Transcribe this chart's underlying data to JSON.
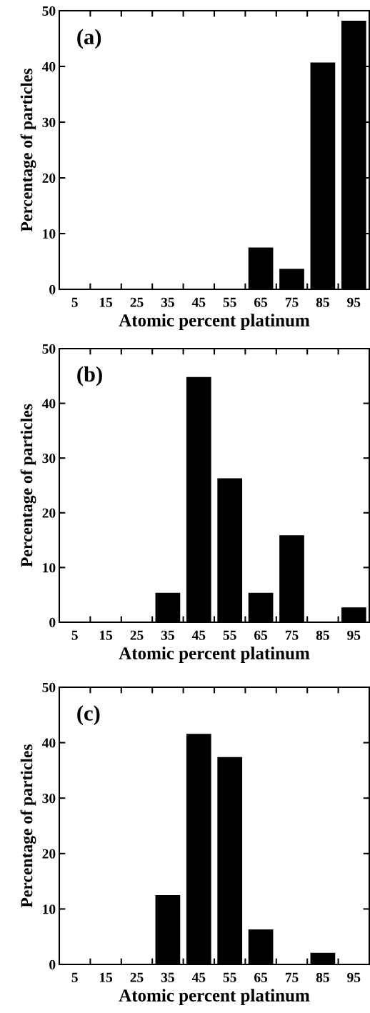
{
  "chart_data": [
    {
      "type": "histogram",
      "annotations": [
        "(a)"
      ],
      "xlabel": "Atomic percent platinum",
      "ylabel": "Percentage of particles",
      "color": "#000000",
      "bins": [
        0,
        10,
        20,
        30,
        40,
        50,
        60,
        70,
        80,
        90,
        100
      ],
      "values": [
        0,
        0,
        0,
        0,
        0,
        0,
        7.5,
        3.7,
        40.7,
        48.2
      ],
      "xlim": [
        0,
        100
      ],
      "ylim": [
        0,
        50
      ],
      "yticks": [
        0,
        10,
        20,
        30,
        40,
        50
      ],
      "xticks": [
        5,
        15,
        25,
        35,
        45,
        55,
        65,
        75,
        85,
        95,
        {
          "value": 10,
          "label": null
        },
        {
          "value": 20,
          "label": null
        },
        {
          "value": 30,
          "label": null
        },
        {
          "value": 40,
          "label": null
        },
        {
          "value": 50,
          "label": null
        },
        {
          "value": 60,
          "label": null
        },
        {
          "value": 70,
          "label": null
        },
        {
          "value": 80,
          "label": null
        },
        {
          "value": 90,
          "label": null
        }
      ]
    },
    {
      "type": "histogram",
      "annotations": [
        "(b)"
      ],
      "xlabel": "Atomic percent platinum",
      "ylabel": "Percentage of particles",
      "color": "#000000",
      "bins": [
        0,
        10,
        20,
        30,
        40,
        50,
        60,
        70,
        80,
        90,
        100
      ],
      "values": [
        0,
        0,
        0,
        5.4,
        44.8,
        26.3,
        5.4,
        15.9,
        0,
        2.7
      ],
      "xlim": [
        0,
        100
      ],
      "ylim": [
        0,
        50
      ],
      "yticks": [
        0,
        10,
        20,
        30,
        40,
        50
      ],
      "xticks": [
        5,
        15,
        25,
        35,
        45,
        55,
        65,
        75,
        85,
        95,
        {
          "value": 10,
          "label": null
        },
        {
          "value": 20,
          "label": null
        },
        {
          "value": 30,
          "label": null
        },
        {
          "value": 40,
          "label": null
        },
        {
          "value": 50,
          "label": null
        },
        {
          "value": 60,
          "label": null
        },
        {
          "value": 70,
          "label": null
        },
        {
          "value": 80,
          "label": null
        },
        {
          "value": 90,
          "label": null
        }
      ]
    },
    {
      "type": "histogram",
      "annotations": [
        "(c)"
      ],
      "xlabel": "Atomic percent platinum",
      "ylabel": "Percentage of particles",
      "color": "#000000",
      "bins": [
        0,
        10,
        20,
        30,
        40,
        50,
        60,
        70,
        80,
        90,
        100
      ],
      "values": [
        0,
        0,
        0,
        12.5,
        41.6,
        37.4,
        6.3,
        0,
        2.1,
        0
      ],
      "xlim": [
        0,
        100
      ],
      "ylim": [
        0,
        50
      ],
      "yticks": [
        0,
        10,
        20,
        30,
        40,
        50
      ],
      "xticks": [
        5,
        15,
        25,
        35,
        45,
        55,
        65,
        75,
        85,
        95,
        {
          "value": 10,
          "label": null
        },
        {
          "value": 20,
          "label": null
        },
        {
          "value": 30,
          "label": null
        },
        {
          "value": 40,
          "label": null
        },
        {
          "value": 50,
          "label": null
        },
        {
          "value": 60,
          "label": null
        },
        {
          "value": 70,
          "label": null
        },
        {
          "value": 80,
          "label": null
        },
        {
          "value": 90,
          "label": null
        }
      ]
    }
  ]
}
